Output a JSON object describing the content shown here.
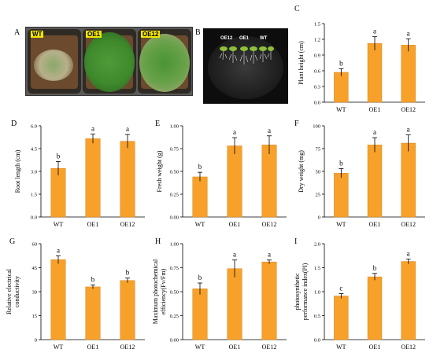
{
  "panel_labels": {
    "A": "A",
    "B": "B",
    "C": "C",
    "D": "D",
    "E": "E",
    "F": "F",
    "G": "G",
    "H": "H",
    "I": "I"
  },
  "photo_a": {
    "tags": [
      "WT",
      "OE1",
      "OE12"
    ]
  },
  "photo_b": {
    "labels": [
      "OE12",
      "OE1",
      "WT"
    ]
  },
  "colors": {
    "bar": "#f7a12b",
    "bar_stroke": "#d9861b"
  },
  "chart_data": [
    {
      "id": "C",
      "type": "bar",
      "categories": [
        "WT",
        "OE1",
        "OE12"
      ],
      "values": [
        0.57,
        1.12,
        1.09
      ],
      "errors": [
        0.07,
        0.13,
        0.12
      ],
      "letters": [
        "b",
        "a",
        "a"
      ],
      "ylabel": "Plant height (cm)",
      "ylim": [
        0,
        1.5
      ],
      "yticks": [
        "0.0",
        "0.3",
        "0.6",
        "0.9",
        "1.2",
        "1.5"
      ]
    },
    {
      "id": "D",
      "type": "bar",
      "categories": [
        "WT",
        "OE1",
        "OE12"
      ],
      "values": [
        3.2,
        5.15,
        4.98
      ],
      "errors": [
        0.45,
        0.3,
        0.45
      ],
      "letters": [
        "b",
        "a",
        "a"
      ],
      "ylabel": "Root length (cm)",
      "ylim": [
        0,
        6.0
      ],
      "yticks": [
        "0.0",
        "1.5",
        "3.0",
        "4.5",
        "6.0"
      ]
    },
    {
      "id": "E",
      "type": "bar",
      "categories": [
        "WT",
        "OE1",
        "OE12"
      ],
      "values": [
        0.44,
        0.78,
        0.79
      ],
      "errors": [
        0.05,
        0.09,
        0.1
      ],
      "letters": [
        "b",
        "a",
        "a"
      ],
      "ylabel": "Fresh weight (g)",
      "ylim": [
        0,
        1.0
      ],
      "yticks": [
        "0.00",
        "0.25",
        "0.50",
        "0.75",
        "1.00"
      ]
    },
    {
      "id": "F",
      "type": "bar",
      "categories": [
        "WT",
        "OE1",
        "OE12"
      ],
      "values": [
        48,
        79,
        81
      ],
      "errors": [
        5,
        8,
        9
      ],
      "letters": [
        "b",
        "a",
        "a"
      ],
      "ylabel": "Dry weight (mg)",
      "ylim": [
        0,
        100
      ],
      "yticks": [
        "0",
        "25",
        "50",
        "75",
        "100"
      ]
    },
    {
      "id": "G",
      "type": "bar",
      "categories": [
        "WT",
        "OE1",
        "OE12"
      ],
      "values": [
        50,
        33,
        37
      ],
      "errors": [
        2.5,
        1.2,
        1.5
      ],
      "letters": [
        "a",
        "b",
        "b"
      ],
      "ylabel": "Relative electrical conductivity",
      "ylim": [
        0,
        60
      ],
      "yticks": [
        "0",
        "15",
        "30",
        "45",
        "60"
      ]
    },
    {
      "id": "H",
      "type": "bar",
      "categories": [
        "WT",
        "OE1",
        "OE12"
      ],
      "values": [
        0.53,
        0.74,
        0.81
      ],
      "errors": [
        0.06,
        0.09,
        0.02
      ],
      "letters": [
        "b",
        "a",
        "a"
      ],
      "ylabel": "Maximum photochemical efficiency(Fv/Fm)",
      "ylim": [
        0,
        1.0
      ],
      "yticks": [
        "0.00",
        "0.25",
        "0.50",
        "0.75",
        "1.00"
      ]
    },
    {
      "id": "I",
      "type": "bar",
      "categories": [
        "WT",
        "OE1",
        "OE12"
      ],
      "values": [
        0.91,
        1.31,
        1.63
      ],
      "errors": [
        0.05,
        0.07,
        0.05
      ],
      "letters": [
        "c",
        "b",
        "a"
      ],
      "ylabel": "photosynthetic performance index(PI)",
      "ylim": [
        0,
        2.0
      ],
      "yticks": [
        "0.0",
        "0.5",
        "1.0",
        "1.5",
        "2.0"
      ]
    }
  ]
}
